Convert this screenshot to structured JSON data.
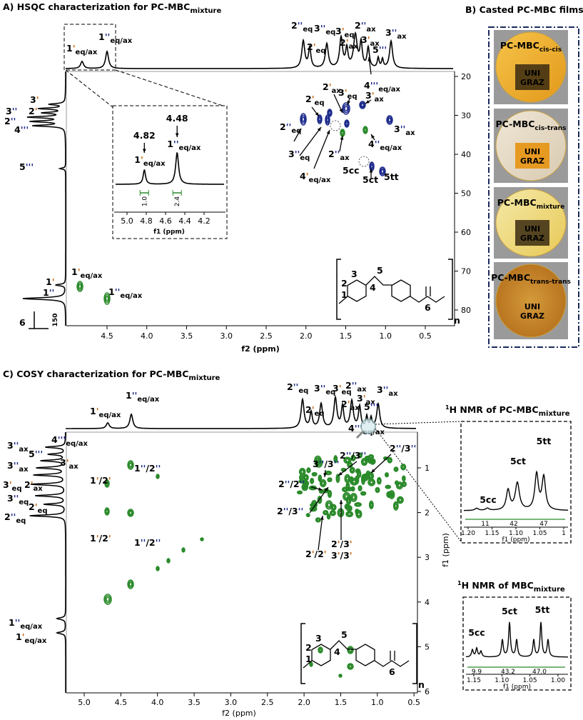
{
  "a": {
    "title": "A) HSQC characterization for PC-MBC",
    "title_sub": "mixture",
    "xlabel": "f2 (ppm)",
    "xticks": [
      "4.5",
      "4.0",
      "3.5",
      "3.0",
      "2.5",
      "2.0",
      "1.5",
      "1.0",
      "0.5"
    ],
    "yticks": [
      "20",
      "30",
      "40",
      "50",
      "60",
      "70",
      "80"
    ],
    "top_labels": [
      {
        "parts": [
          "1",
          "'"
        ],
        "sub": "eq/ax"
      },
      {
        "parts": [
          "1",
          "''"
        ],
        "sub": "eq/ax"
      },
      {
        "parts": [
          "2",
          "''"
        ],
        "sub": "eq"
      },
      {
        "parts": [
          "2",
          "'"
        ],
        "sub": "eq"
      },
      {
        "parts": [
          "3",
          "''"
        ],
        "sub": "eq"
      },
      {
        "parts": [
          "3",
          "'"
        ],
        "sub": "eq"
      },
      {
        "parts": [
          "2",
          "'"
        ],
        "sub": "ax"
      },
      {
        "parts": [
          "2",
          "''"
        ],
        "sub": "ax"
      },
      {
        "parts": [
          "3",
          "'"
        ],
        "sub": "ax"
      },
      {
        "parts": [
          "5",
          "'''"
        ]
      },
      {
        "parts": [
          "3",
          "''"
        ],
        "sub": "ax"
      },
      {
        "parts": [
          "4",
          "'''"
        ],
        "sub": "eq/ax"
      }
    ],
    "left_labels": [
      {
        "parts": [
          "3",
          "'"
        ]
      },
      {
        "parts": [
          "3",
          "''"
        ]
      },
      {
        "parts": [
          "2",
          "'"
        ]
      },
      {
        "parts": [
          "2",
          "''"
        ]
      },
      {
        "parts": [
          "4",
          "'''"
        ]
      },
      {
        "parts": [
          "5",
          "'''"
        ]
      },
      {
        "parts": [
          "1",
          "'"
        ]
      },
      {
        "parts": [
          "1",
          "''"
        ]
      },
      {
        "parts": [
          "6"
        ]
      }
    ],
    "scale_label": "150",
    "peak_labels": [
      {
        "parts": [
          "2",
          "'"
        ],
        "sub": "ax"
      },
      {
        "parts": [
          "3",
          "'"
        ],
        "sub": "eq"
      },
      {
        "parts": [
          "3",
          "'"
        ],
        "sub": "ax"
      },
      {
        "parts": [
          "2",
          "'"
        ],
        "sub": "eq"
      },
      {
        "parts": [
          "2",
          "''"
        ],
        "sub": "eq"
      },
      {
        "parts": [
          "3",
          "''"
        ],
        "sub": "ax"
      },
      {
        "parts": [
          "3",
          "''"
        ],
        "sub": "eq"
      },
      {
        "parts": [
          "2",
          "''"
        ],
        "sub": "ax"
      },
      {
        "parts": [
          "4",
          "''"
        ],
        "sub": "eq/ax"
      },
      {
        "parts": [
          "4",
          "'"
        ],
        "sub": "eq/ax"
      },
      {
        "parts": [
          "5cc"
        ]
      },
      {
        "parts": [
          "5ct"
        ]
      },
      {
        "parts": [
          "5tt"
        ]
      },
      {
        "parts": [
          "1",
          "'"
        ],
        "sub": "eq/ax"
      },
      {
        "parts": [
          "1",
          "''"
        ],
        "sub": "eq/ax"
      }
    ],
    "inset": {
      "values": [
        "4.82",
        "4.48"
      ],
      "labels": [
        {
          "parts": [
            "1",
            "'"
          ],
          "sub": "eq/ax"
        },
        {
          "parts": [
            "1",
            "''"
          ],
          "sub": "eq/ax"
        }
      ],
      "integrals": [
        "1.0",
        "2.4"
      ],
      "xticks": [
        "5.0",
        "4.8",
        "4.6",
        "4.4",
        "4.2"
      ],
      "xlabel": "f1 (ppm)"
    },
    "structure": {
      "numbers": [
        "1",
        "2",
        "3",
        "4",
        "5",
        "6"
      ],
      "n": "n"
    }
  },
  "b": {
    "title": "B) Casted PC-MBC films",
    "films": [
      {
        "name": "PC-MBC",
        "sub": "cis-cis"
      },
      {
        "name": "PC-MBC",
        "sub": "cis-trans"
      },
      {
        "name": "PC-MBC",
        "sub": "mixture"
      },
      {
        "name": "PC-MBC",
        "sub": "trans-trans"
      }
    ],
    "logo": [
      "UNI",
      "GRAZ"
    ]
  },
  "c": {
    "title": "C) COSY characterization for PC-MBC",
    "title_sub": "mixture",
    "xlabel": "f2 (ppm)",
    "ylabel": "f1 (ppm)",
    "xticks": [
      "5.0",
      "4.5",
      "4.0",
      "3.5",
      "3.0",
      "2.5",
      "2.0",
      "1.5",
      "1.0",
      "0.5"
    ],
    "yticks": [
      "1",
      "2",
      "3",
      "4",
      "5",
      "6"
    ],
    "top_labels": [
      {
        "parts": [
          "1",
          "'"
        ],
        "sub": "eq/ax"
      },
      {
        "parts": [
          "1",
          "''"
        ],
        "sub": "eq/ax"
      },
      {
        "parts": [
          "2",
          "''"
        ],
        "sub": "eq"
      },
      {
        "parts": [
          "2",
          "'"
        ],
        "sub": "eq"
      },
      {
        "parts": [
          "3",
          "''"
        ],
        "sub": "eq"
      },
      {
        "parts": [
          "3",
          "'"
        ],
        "sub": "eq"
      },
      {
        "parts": [
          "2",
          "''"
        ],
        "sub": "ax"
      },
      {
        "parts": [
          "2",
          "'"
        ],
        "sub": "ax"
      },
      {
        "parts": [
          "3",
          "'"
        ],
        "sub": "ax"
      },
      {
        "parts": [
          "3",
          "''"
        ],
        "sub": "ax"
      },
      {
        "parts": [
          "5",
          "'''"
        ]
      },
      {
        "parts": [
          "4",
          "'''"
        ],
        "sub": "eq/ax"
      }
    ],
    "left_labels": [
      {
        "parts": [
          "3",
          "''"
        ],
        "sub": "ax"
      },
      {
        "parts": [
          "4",
          "'''"
        ],
        "sub": "eq/ax"
      },
      {
        "parts": [
          "5",
          "'''"
        ]
      },
      {
        "parts": [
          "3",
          "'"
        ],
        "sub": "ax"
      },
      {
        "parts": [
          "3",
          "''"
        ],
        "sub": "ax"
      },
      {
        "parts": [
          "3",
          "'"
        ],
        "sub": "eq"
      },
      {
        "parts": [
          "2",
          "'"
        ],
        "sub": "ax"
      },
      {
        "parts": [
          "3",
          "''"
        ],
        "sub": "eq"
      },
      {
        "parts": [
          "2",
          "'"
        ],
        "sub": "eq"
      },
      {
        "parts": [
          "2",
          "''"
        ],
        "sub": "eq"
      },
      {
        "parts": [
          "1",
          "''"
        ],
        "sub": "eq/ax"
      },
      {
        "parts": [
          "1",
          "'"
        ],
        "sub": "eq/ax"
      }
    ],
    "peak_labels": [
      {
        "parts": [
          "1",
          "'",
          "/2",
          "'"
        ]
      },
      {
        "parts": [
          "1",
          "''",
          "/2",
          "''"
        ]
      },
      {
        "parts": [
          "1",
          "'",
          "/2",
          "'"
        ]
      },
      {
        "parts": [
          "1",
          "''",
          "/2",
          "''"
        ]
      },
      {
        "parts": [
          "3",
          "''",
          "/3",
          "''"
        ]
      },
      {
        "parts": [
          "2",
          "''",
          "/3",
          "''"
        ]
      },
      {
        "parts": [
          "2",
          "''",
          "/3",
          "''"
        ]
      },
      {
        "parts": [
          "2",
          "''",
          "/2",
          "''"
        ]
      },
      {
        "parts": [
          "2",
          "''",
          "/3",
          "''"
        ]
      },
      {
        "parts": [
          "2",
          "'",
          "/2",
          "'"
        ]
      },
      {
        "parts": [
          "2",
          "'",
          "/3",
          "'"
        ]
      },
      {
        "parts": [
          "3",
          "'",
          "/3",
          "'"
        ]
      }
    ],
    "structure": {
      "numbers": [
        "1",
        "2",
        "3",
        "4",
        "5",
        "6"
      ],
      "n": "n"
    }
  },
  "d": {
    "title_sup": "1",
    "title": "H NMR of PC-MBC",
    "title_sub": "mixture",
    "labels": [
      "5cc",
      "5ct",
      "5tt"
    ],
    "integrals": [
      "11",
      "42",
      "47"
    ],
    "xticks": [
      "1.20",
      "1.15",
      "1.10",
      "1.05",
      "1"
    ],
    "xlabel": "f1 (ppm)"
  },
  "e": {
    "title_sup": "1",
    "title": "H NMR of MBC",
    "title_sub": "mixture",
    "labels": [
      "5cc",
      "5ct",
      "5tt"
    ],
    "integrals": [
      "9.9",
      "43.2",
      "47.0"
    ],
    "xticks": [
      "1.15",
      "1.10",
      "1.05",
      "1.00"
    ],
    "xlabel": "f1 (ppm)"
  }
}
